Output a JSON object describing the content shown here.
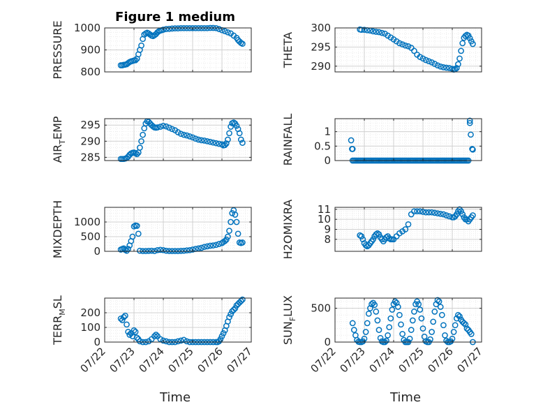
{
  "figure": {
    "title": "Figure 1 medium"
  },
  "colors": {
    "marker": "#0072BD",
    "axis": "#262626",
    "grid": "#d0d0d0",
    "minor_grid": "#ececec"
  },
  "chart_data": [
    {
      "type": "scatter",
      "ylabel": "PRESSURE",
      "ylabel_main": "PRESSURE",
      "ylabel_sub": "",
      "ylabel_tail": "",
      "ylim": [
        800,
        1000
      ],
      "yticks": [
        800,
        900,
        1000
      ],
      "ytick_labels": [
        "800",
        "900",
        "1000"
      ],
      "xlim": [
        0,
        5
      ],
      "show_xticks": false,
      "x": [
        0.55,
        0.6,
        0.65,
        0.7,
        0.75,
        0.8,
        0.85,
        0.9,
        0.95,
        1.0,
        1.05,
        1.1,
        1.15,
        1.2,
        1.25,
        1.3,
        1.35,
        1.4,
        1.45,
        1.5,
        1.55,
        1.6,
        1.65,
        1.7,
        1.75,
        1.8,
        1.85,
        1.9,
        1.95,
        2.0,
        2.1,
        2.2,
        2.3,
        2.4,
        2.5,
        2.6,
        2.7,
        2.8,
        2.9,
        3.0,
        3.1,
        3.2,
        3.3,
        3.4,
        3.5,
        3.6,
        3.7,
        3.8,
        3.9,
        4.0,
        4.1,
        4.2,
        4.3,
        4.4,
        4.5,
        4.55,
        4.6,
        4.65,
        4.7
      ],
      "y": [
        830,
        830,
        832,
        833,
        835,
        840,
        845,
        848,
        850,
        852,
        853,
        860,
        880,
        900,
        920,
        950,
        970,
        975,
        978,
        975,
        970,
        965,
        963,
        967,
        972,
        980,
        985,
        988,
        990,
        992,
        995,
        996,
        997,
        998,
        998,
        999,
        999,
        999,
        999,
        999,
        999,
        999,
        999,
        999,
        999,
        1000,
        1000,
        999,
        995,
        990,
        985,
        980,
        975,
        965,
        955,
        945,
        938,
        932,
        928
      ]
    },
    {
      "type": "scatter",
      "ylabel": "THETA",
      "ylabel_main": "THETA",
      "ylabel_sub": "",
      "ylabel_tail": "",
      "ylim": [
        288.5,
        300
      ],
      "yticks": [
        290,
        295,
        300
      ],
      "ytick_labels": [
        "290",
        "295",
        "300"
      ],
      "xlim": [
        0,
        5
      ],
      "show_xticks": false,
      "x": [
        0.85,
        0.9,
        1.0,
        1.1,
        1.2,
        1.3,
        1.4,
        1.5,
        1.6,
        1.7,
        1.8,
        1.9,
        2.0,
        2.1,
        2.2,
        2.3,
        2.4,
        2.5,
        2.6,
        2.7,
        2.8,
        2.9,
        3.0,
        3.1,
        3.2,
        3.3,
        3.4,
        3.5,
        3.6,
        3.7,
        3.8,
        3.9,
        4.0,
        4.05,
        4.1,
        4.15,
        4.2,
        4.25,
        4.3,
        4.35,
        4.4,
        4.45,
        4.5,
        4.55,
        4.6,
        4.65,
        4.7
      ],
      "y": [
        299.6,
        299.5,
        299.5,
        299.4,
        299.3,
        299.1,
        299.0,
        298.9,
        298.7,
        298.5,
        298.0,
        297.5,
        297.0,
        296.5,
        296.0,
        295.7,
        295.4,
        295.2,
        294.8,
        294.0,
        293.0,
        292.4,
        292.0,
        291.6,
        291.3,
        291.0,
        290.6,
        290.2,
        289.9,
        289.7,
        289.6,
        289.5,
        289.3,
        289.1,
        289.2,
        289.5,
        290.5,
        292.0,
        294.0,
        296.0,
        297.4,
        297.9,
        298.2,
        298.0,
        297.3,
        296.5,
        295.8
      ]
    },
    {
      "type": "scatter",
      "ylabel": "AIR_TEMP",
      "ylabel_main": "AIR",
      "ylabel_sub": "T",
      "ylabel_tail": "EMP",
      "ylim": [
        284,
        297
      ],
      "yticks": [
        285,
        290,
        295
      ],
      "ytick_labels": [
        "285",
        "290",
        "295"
      ],
      "xlim": [
        0,
        5
      ],
      "show_xticks": false,
      "x": [
        0.55,
        0.6,
        0.65,
        0.7,
        0.75,
        0.8,
        0.85,
        0.9,
        0.95,
        1.0,
        1.05,
        1.1,
        1.15,
        1.2,
        1.25,
        1.3,
        1.35,
        1.4,
        1.45,
        1.5,
        1.55,
        1.6,
        1.65,
        1.7,
        1.75,
        1.8,
        1.9,
        2.0,
        2.1,
        2.2,
        2.3,
        2.4,
        2.5,
        2.6,
        2.7,
        2.8,
        2.9,
        3.0,
        3.1,
        3.2,
        3.3,
        3.4,
        3.5,
        3.6,
        3.7,
        3.8,
        3.9,
        4.0,
        4.05,
        4.1,
        4.15,
        4.2,
        4.25,
        4.3,
        4.35,
        4.4,
        4.45,
        4.5,
        4.55,
        4.6,
        4.65,
        4.7
      ],
      "y": [
        284.5,
        284.5,
        284.5,
        284.6,
        284.8,
        285.2,
        285.8,
        286.2,
        286.4,
        286.5,
        286.3,
        286.0,
        286.5,
        288.0,
        290.0,
        292.0,
        294.0,
        295.5,
        296.2,
        296.0,
        295.5,
        295.0,
        294.6,
        294.3,
        294.2,
        294.3,
        294.5,
        294.8,
        294.6,
        294.2,
        293.8,
        293.4,
        292.8,
        292.3,
        292.0,
        291.8,
        291.5,
        291.2,
        290.8,
        290.5,
        290.3,
        290.2,
        290.0,
        289.8,
        289.6,
        289.4,
        289.2,
        289.0,
        288.7,
        288.8,
        289.3,
        290.5,
        292.5,
        294.5,
        295.6,
        295.8,
        295.5,
        294.8,
        293.8,
        292.5,
        290.5,
        289.5
      ]
    },
    {
      "type": "scatter",
      "ylabel": "RAINFALL",
      "ylabel_main": "RAINFALL",
      "ylabel_sub": "",
      "ylabel_tail": "",
      "ylim": [
        0,
        1.45
      ],
      "yticks": [
        0,
        0.5,
        1
      ],
      "ytick_labels": [
        "0",
        "0.5",
        "1"
      ],
      "xlim": [
        0,
        5
      ],
      "show_xticks": false,
      "x": [
        0.6,
        0.65,
        0.7,
        0.75,
        0.8,
        0.85,
        0.9,
        0.95,
        1.0,
        1.05,
        1.1,
        1.15,
        1.2,
        1.25,
        1.3,
        1.35,
        1.4,
        1.45,
        1.5,
        1.55,
        1.6,
        1.65,
        1.7,
        1.75,
        1.8,
        1.85,
        1.9,
        1.95,
        2.0,
        2.05,
        2.1,
        2.15,
        2.2,
        2.25,
        2.3,
        2.35,
        2.4,
        2.45,
        2.5,
        2.55,
        2.6,
        2.65,
        2.7,
        2.75,
        2.8,
        2.85,
        2.9,
        2.95,
        3.0,
        3.05,
        3.1,
        3.15,
        3.2,
        3.25,
        3.3,
        3.35,
        3.4,
        3.45,
        3.5,
        3.55,
        3.6,
        3.65,
        3.7,
        3.75,
        3.8,
        3.85,
        3.9,
        3.95,
        4.0,
        4.05,
        4.1,
        4.15,
        4.2,
        4.25,
        4.3,
        4.35,
        4.4,
        4.45,
        4.5,
        4.55,
        4.6,
        4.6,
        4.63,
        4.68,
        4.7,
        0.55,
        0.58,
        0.6
      ],
      "y": [
        0,
        0,
        0,
        0,
        0,
        0,
        0,
        0,
        0,
        0,
        0,
        0,
        0,
        0,
        0,
        0,
        0,
        0,
        0,
        0,
        0,
        0,
        0,
        0,
        0,
        0,
        0,
        0,
        0,
        0,
        0,
        0,
        0,
        0,
        0,
        0,
        0,
        0,
        0,
        0,
        0,
        0,
        0,
        0,
        0,
        0,
        0,
        0,
        0,
        0,
        0,
        0,
        0,
        0,
        0,
        0,
        0,
        0,
        0,
        0,
        0,
        0,
        0,
        0,
        0,
        0,
        0,
        0,
        0,
        0,
        0,
        0,
        0,
        0,
        0,
        0,
        0,
        0,
        0,
        0,
        1.38,
        1.3,
        0.9,
        0.4,
        0.38,
        0.7,
        0.4,
        0.4
      ]
    },
    {
      "type": "scatter",
      "ylabel": "MIXDEPTH",
      "ylabel_main": "MIXDEPTH",
      "ylabel_sub": "",
      "ylabel_tail": "",
      "ylim": [
        0,
        1500
      ],
      "yticks": [
        0,
        500,
        1000
      ],
      "ytick_labels": [
        "0",
        "500",
        "1000"
      ],
      "xlim": [
        0,
        5
      ],
      "show_xticks": false,
      "x": [
        0.55,
        0.6,
        0.65,
        0.7,
        0.75,
        0.8,
        0.85,
        0.9,
        0.95,
        1.0,
        1.05,
        1.1,
        1.15,
        1.2,
        1.3,
        1.4,
        1.5,
        1.6,
        1.7,
        1.8,
        1.9,
        2.0,
        2.1,
        2.2,
        2.3,
        2.4,
        2.5,
        2.6,
        2.7,
        2.8,
        2.9,
        3.0,
        3.1,
        3.2,
        3.3,
        3.4,
        3.5,
        3.6,
        3.7,
        3.8,
        3.9,
        4.0,
        4.05,
        4.1,
        4.15,
        4.2,
        4.25,
        4.3,
        4.35,
        4.4,
        4.45,
        4.5,
        4.55,
        4.6,
        4.65,
        4.7
      ],
      "y": [
        60,
        80,
        100,
        50,
        20,
        80,
        200,
        350,
        500,
        850,
        880,
        870,
        600,
        20,
        10,
        10,
        15,
        20,
        10,
        40,
        50,
        40,
        20,
        10,
        10,
        10,
        10,
        15,
        20,
        30,
        40,
        60,
        80,
        100,
        120,
        150,
        170,
        190,
        200,
        220,
        250,
        280,
        320,
        350,
        400,
        500,
        700,
        1000,
        1300,
        1400,
        1250,
        1000,
        600,
        300,
        280,
        300
      ]
    },
    {
      "type": "scatter",
      "ylabel": "H2OMIXRA",
      "ylabel_main": "H2OMIXRA",
      "ylabel_sub": "",
      "ylabel_tail": "",
      "ylim": [
        6.8,
        11.2
      ],
      "yticks": [
        8,
        9,
        10,
        11
      ],
      "ytick_labels": [
        "8",
        "9",
        "10",
        "11"
      ],
      "xlim": [
        0,
        5
      ],
      "show_xticks": false,
      "x": [
        0.85,
        0.9,
        0.95,
        1.0,
        1.05,
        1.1,
        1.15,
        1.2,
        1.25,
        1.3,
        1.35,
        1.4,
        1.45,
        1.5,
        1.55,
        1.6,
        1.65,
        1.7,
        1.75,
        1.8,
        1.85,
        1.9,
        1.95,
        2.0,
        2.1,
        2.2,
        2.3,
        2.4,
        2.5,
        2.6,
        2.7,
        2.8,
        2.9,
        3.0,
        3.1,
        3.2,
        3.3,
        3.4,
        3.5,
        3.6,
        3.7,
        3.8,
        3.9,
        4.0,
        4.05,
        4.1,
        4.15,
        4.2,
        4.25,
        4.3,
        4.35,
        4.4,
        4.45,
        4.5,
        4.55,
        4.6,
        4.65,
        4.7
      ],
      "y": [
        8.4,
        8.3,
        8.0,
        7.6,
        7.4,
        7.3,
        7.4,
        7.6,
        7.8,
        8.0,
        8.3,
        8.5,
        8.6,
        8.5,
        8.2,
        8.0,
        7.8,
        8.0,
        8.2,
        8.3,
        8.1,
        8.0,
        8.0,
        8.0,
        8.3,
        8.6,
        8.8,
        9.0,
        9.5,
        10.5,
        10.8,
        10.8,
        10.8,
        10.75,
        10.7,
        10.7,
        10.7,
        10.65,
        10.6,
        10.55,
        10.5,
        10.4,
        10.3,
        10.2,
        10.2,
        10.3,
        10.5,
        10.8,
        11.0,
        10.8,
        10.5,
        10.2,
        10.0,
        10.0,
        9.8,
        10.0,
        10.2,
        10.4
      ]
    },
    {
      "type": "scatter",
      "ylabel": "TERR_MSL",
      "ylabel_main": "TERR",
      "ylabel_sub": "M",
      "ylabel_tail": "SL",
      "ylim": [
        0,
        300
      ],
      "yticks": [
        0,
        100,
        200
      ],
      "ytick_labels": [
        "0",
        "100",
        "200"
      ],
      "xlim": [
        0,
        5
      ],
      "show_xticks": true,
      "xticks": [
        0,
        1,
        2,
        3,
        4,
        5
      ],
      "xtick_labels": [
        "07/22",
        "07/23",
        "07/24",
        "07/25",
        "07/26",
        "07/27"
      ],
      "xlabel": "Time",
      "x": [
        0.55,
        0.6,
        0.65,
        0.7,
        0.75,
        0.8,
        0.85,
        0.9,
        0.95,
        1.0,
        1.05,
        1.1,
        1.15,
        1.2,
        1.3,
        1.4,
        1.5,
        1.6,
        1.7,
        1.75,
        1.8,
        1.9,
        2.0,
        2.1,
        2.2,
        2.3,
        2.4,
        2.5,
        2.6,
        2.7,
        2.8,
        2.9,
        3.0,
        3.1,
        3.2,
        3.3,
        3.4,
        3.5,
        3.6,
        3.7,
        3.8,
        3.85,
        3.9,
        3.95,
        4.0,
        4.05,
        4.1,
        4.15,
        4.2,
        4.25,
        4.3,
        4.35,
        4.4,
        4.45,
        4.5,
        4.55,
        4.6,
        4.65,
        4.7
      ],
      "y": [
        160,
        150,
        170,
        180,
        120,
        70,
        50,
        60,
        40,
        80,
        70,
        30,
        20,
        5,
        0,
        0,
        5,
        20,
        40,
        50,
        40,
        20,
        10,
        5,
        0,
        0,
        0,
        5,
        10,
        15,
        5,
        0,
        0,
        0,
        0,
        0,
        0,
        0,
        0,
        0,
        0,
        0,
        5,
        20,
        40,
        60,
        80,
        110,
        140,
        170,
        190,
        210,
        220,
        230,
        250,
        260,
        270,
        280,
        290
      ]
    },
    {
      "type": "scatter",
      "ylabel": "SUN_FLUX",
      "ylabel_main": "SUN",
      "ylabel_sub": "F",
      "ylabel_tail": "LUX",
      "ylim": [
        0,
        650
      ],
      "yticks": [
        0,
        500
      ],
      "ytick_labels": [
        "0",
        "500"
      ],
      "xlim": [
        0,
        5
      ],
      "show_xticks": true,
      "xticks": [
        0,
        1,
        2,
        3,
        4,
        5
      ],
      "xtick_labels": [
        "07/22",
        "07/23",
        "07/24",
        "07/25",
        "07/26",
        "07/27"
      ],
      "xlabel": "Time",
      "x": [
        0.6,
        0.65,
        0.7,
        0.75,
        0.8,
        0.85,
        0.9,
        0.95,
        1.0,
        1.05,
        1.1,
        1.15,
        1.2,
        1.25,
        1.3,
        1.35,
        1.4,
        1.45,
        1.5,
        1.55,
        1.6,
        1.65,
        1.7,
        1.75,
        1.8,
        1.85,
        1.9,
        1.95,
        2.0,
        2.05,
        2.1,
        2.15,
        2.2,
        2.25,
        2.3,
        2.35,
        2.4,
        2.45,
        2.5,
        2.55,
        2.6,
        2.65,
        2.7,
        2.75,
        2.8,
        2.85,
        2.9,
        2.95,
        3.0,
        3.05,
        3.1,
        3.15,
        3.2,
        3.25,
        3.3,
        3.35,
        3.4,
        3.45,
        3.5,
        3.55,
        3.6,
        3.65,
        3.7,
        3.75,
        3.8,
        3.85,
        3.9,
        3.95,
        4.0,
        4.05,
        4.1,
        4.15,
        4.2,
        4.25,
        4.3,
        4.35,
        4.4,
        4.45,
        4.5,
        4.55,
        4.6,
        4.65,
        4.7
      ],
      "y": [
        280,
        180,
        100,
        30,
        5,
        0,
        0,
        10,
        50,
        150,
        280,
        420,
        500,
        560,
        580,
        550,
        450,
        320,
        180,
        60,
        10,
        0,
        0,
        20,
        100,
        220,
        350,
        480,
        560,
        600,
        580,
        520,
        400,
        260,
        120,
        30,
        0,
        0,
        0,
        50,
        180,
        320,
        450,
        560,
        600,
        560,
        480,
        350,
        200,
        80,
        10,
        0,
        0,
        40,
        150,
        300,
        450,
        560,
        620,
        600,
        520,
        400,
        250,
        100,
        20,
        0,
        0,
        10,
        50,
        150,
        250,
        350,
        400,
        380,
        330,
        300,
        280,
        260,
        200,
        180,
        150,
        120,
        0
      ]
    }
  ]
}
